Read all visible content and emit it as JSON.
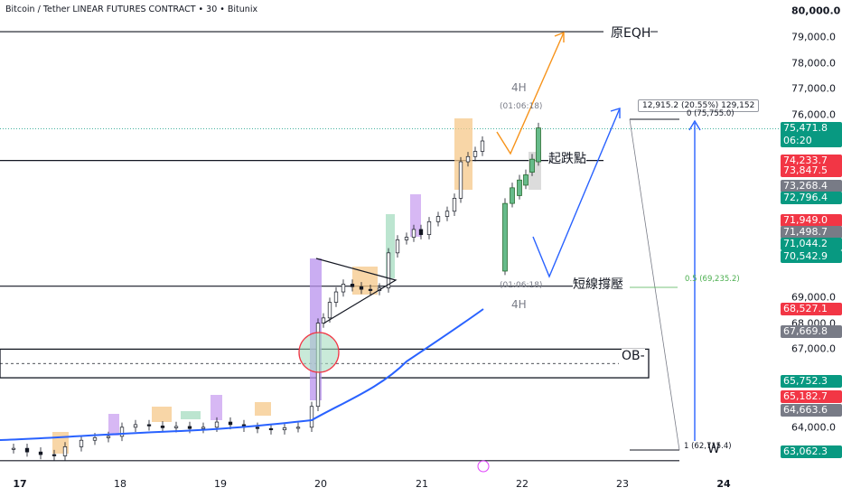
{
  "header": {
    "title": "Bitcoin / Tether LINEAR FUTURES CONTRACT • 30 • Bitunix"
  },
  "chart_data": {
    "type": "candlestick",
    "ylim": [
      62000,
      80200
    ],
    "x_ticks": [
      "17",
      "18",
      "19",
      "20",
      "21",
      "22",
      "23",
      "24"
    ],
    "y_ticks": [
      "80,000.0",
      "79,000.0",
      "78,000.0",
      "77,000.0",
      "76,000.0",
      "69,000.0",
      "68,000.0",
      "67,000.0",
      "64,000.0"
    ],
    "price_labels": [
      {
        "text": "75,471.8",
        "sub": "06:20",
        "color": "#089981"
      },
      {
        "text": "74,233.7",
        "color": "#f23645"
      },
      {
        "text": "73,847.5",
        "color": "#f23645"
      },
      {
        "text": "73,268.4",
        "color": "#787b86"
      },
      {
        "text": "72,796.4",
        "color": "#089981"
      },
      {
        "text": "71,949.0",
        "color": "#f23645"
      },
      {
        "text": "71,498.7",
        "color": "#787b86"
      },
      {
        "text": "71,044.2",
        "color": "#089981"
      },
      {
        "text": "70,542.9",
        "color": "#089981"
      },
      {
        "text": "68,527.1",
        "color": "#f23645"
      },
      {
        "text": "67,669.8",
        "color": "#787b86"
      },
      {
        "text": "65,752.3",
        "color": "#089981"
      },
      {
        "text": "65,182.7",
        "color": "#f23645"
      },
      {
        "text": "64,663.6",
        "color": "#787b86"
      },
      {
        "text": "63,062.3",
        "color": "#089981"
      }
    ],
    "levels": [
      {
        "label": "原EQH",
        "price": 79200
      },
      {
        "label": "起跌點",
        "price": 74250
      },
      {
        "label": "短線撐壓",
        "price": 69420
      }
    ],
    "ob": {
      "label": "OB-",
      "top": 67000,
      "bottom": 65900,
      "mid": 66450
    },
    "measure": {
      "text": "12,915.2 (20.55%) 129,152",
      "fib0": "0 (75,755.0)",
      "fib05": "0.5 (69,235.2)",
      "fib1": "1 (62,715.4)",
      "w": "W"
    },
    "annotations": {
      "top4h": "4H",
      "top_time": "(01:06:18)",
      "bot_time": "(01:06:18)",
      "bot4h": "4H"
    }
  }
}
